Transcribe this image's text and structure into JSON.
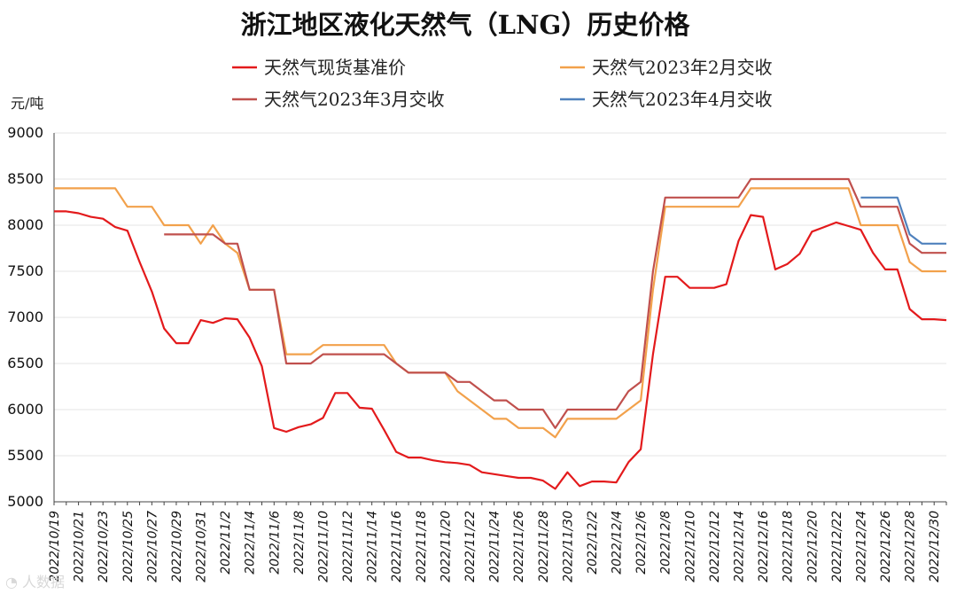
{
  "chart_data": {
    "type": "line",
    "title": "浙江地区液化天然气（LNG）历史价格",
    "ylabel": "元/吨",
    "ylim": [
      5000,
      9000
    ],
    "yticks": [
      5000,
      5500,
      6000,
      6500,
      7000,
      7500,
      8000,
      8500,
      9000
    ],
    "grid": true,
    "legend_position": "top",
    "x_labels": [
      "2022/10/19",
      "2022/10/21",
      "2022/10/23",
      "2022/10/25",
      "2022/10/27",
      "2022/10/29",
      "2022/10/31",
      "2022/11/2",
      "2022/11/4",
      "2022/11/6",
      "2022/11/8",
      "2022/11/10",
      "2022/11/12",
      "2022/11/14",
      "2022/11/16",
      "2022/11/18",
      "2022/11/20",
      "2022/11/22",
      "2022/11/24",
      "2022/11/26",
      "2022/11/28",
      "2022/11/30",
      "2022/12/2",
      "2022/12/4",
      "2022/12/6",
      "2022/12/8",
      "2022/12/10",
      "2022/12/12",
      "2022/12/14",
      "2022/12/16",
      "2022/12/18",
      "2022/12/20",
      "2022/12/22",
      "2022/12/24",
      "2022/12/26",
      "2022/12/28",
      "2022/12/30"
    ],
    "x_start": "2022/10/19",
    "x_end": "2022/12/31",
    "series": [
      {
        "name": "天然气现货基准价",
        "color": "#e31a1c",
        "points": [
          [
            "2022/10/19",
            8150
          ],
          [
            "2022/10/20",
            8150
          ],
          [
            "2022/10/21",
            8130
          ],
          [
            "2022/10/22",
            8090
          ],
          [
            "2022/10/23",
            8070
          ],
          [
            "2022/10/24",
            7980
          ],
          [
            "2022/10/25",
            7940
          ],
          [
            "2022/10/26",
            7600
          ],
          [
            "2022/10/27",
            7280
          ],
          [
            "2022/10/28",
            6880
          ],
          [
            "2022/10/29",
            6720
          ],
          [
            "2022/10/30",
            6720
          ],
          [
            "2022/10/31",
            6970
          ],
          [
            "2022/11/1",
            6940
          ],
          [
            "2022/11/2",
            6990
          ],
          [
            "2022/11/3",
            6980
          ],
          [
            "2022/11/4",
            6780
          ],
          [
            "2022/11/5",
            6470
          ],
          [
            "2022/11/6",
            5800
          ],
          [
            "2022/11/7",
            5760
          ],
          [
            "2022/11/8",
            5810
          ],
          [
            "2022/11/9",
            5840
          ],
          [
            "2022/11/10",
            5910
          ],
          [
            "2022/11/11",
            6180
          ],
          [
            "2022/11/12",
            6180
          ],
          [
            "2022/11/13",
            6020
          ],
          [
            "2022/11/14",
            6010
          ],
          [
            "2022/11/15",
            5780
          ],
          [
            "2022/11/16",
            5540
          ],
          [
            "2022/11/17",
            5480
          ],
          [
            "2022/11/18",
            5480
          ],
          [
            "2022/11/19",
            5450
          ],
          [
            "2022/11/20",
            5430
          ],
          [
            "2022/11/21",
            5420
          ],
          [
            "2022/11/22",
            5400
          ],
          [
            "2022/11/23",
            5320
          ],
          [
            "2022/11/24",
            5300
          ],
          [
            "2022/11/25",
            5280
          ],
          [
            "2022/11/26",
            5260
          ],
          [
            "2022/11/27",
            5260
          ],
          [
            "2022/11/28",
            5230
          ],
          [
            "2022/11/29",
            5140
          ],
          [
            "2022/11/30",
            5320
          ],
          [
            "2022/12/1",
            5170
          ],
          [
            "2022/12/2",
            5220
          ],
          [
            "2022/12/3",
            5220
          ],
          [
            "2022/12/4",
            5210
          ],
          [
            "2022/12/5",
            5430
          ],
          [
            "2022/12/6",
            5570
          ],
          [
            "2022/12/7",
            6600
          ],
          [
            "2022/12/8",
            7440
          ],
          [
            "2022/12/9",
            7440
          ],
          [
            "2022/12/10",
            7320
          ],
          [
            "2022/12/11",
            7320
          ],
          [
            "2022/12/12",
            7320
          ],
          [
            "2022/12/13",
            7360
          ],
          [
            "2022/12/14",
            7830
          ],
          [
            "2022/12/15",
            8110
          ],
          [
            "2022/12/16",
            8090
          ],
          [
            "2022/12/17",
            7520
          ],
          [
            "2022/12/18",
            7580
          ],
          [
            "2022/12/19",
            7690
          ],
          [
            "2022/12/20",
            7930
          ],
          [
            "2022/12/21",
            7980
          ],
          [
            "2022/12/22",
            8030
          ],
          [
            "2022/12/23",
            7990
          ],
          [
            "2022/12/24",
            7950
          ],
          [
            "2022/12/25",
            7700
          ],
          [
            "2022/12/26",
            7520
          ],
          [
            "2022/12/27",
            7520
          ],
          [
            "2022/12/28",
            7090
          ],
          [
            "2022/12/29",
            6980
          ],
          [
            "2022/12/30",
            6980
          ],
          [
            "2022/12/31",
            6970
          ]
        ]
      },
      {
        "name": "天然气2023年2月交收",
        "color": "#f2a14b",
        "points": [
          [
            "2022/10/19",
            8400
          ],
          [
            "2022/10/24",
            8400
          ],
          [
            "2022/10/25",
            8200
          ],
          [
            "2022/10/27",
            8200
          ],
          [
            "2022/10/28",
            8000
          ],
          [
            "2022/10/30",
            8000
          ],
          [
            "2022/10/31",
            7800
          ],
          [
            "2022/11/1",
            8000
          ],
          [
            "2022/11/2",
            7800
          ],
          [
            "2022/11/3",
            7700
          ],
          [
            "2022/11/4",
            7300
          ],
          [
            "2022/11/6",
            7300
          ],
          [
            "2022/11/7",
            6600
          ],
          [
            "2022/11/9",
            6600
          ],
          [
            "2022/11/10",
            6700
          ],
          [
            "2022/11/15",
            6700
          ],
          [
            "2022/11/16",
            6500
          ],
          [
            "2022/11/17",
            6400
          ],
          [
            "2022/11/20",
            6400
          ],
          [
            "2022/11/21",
            6200
          ],
          [
            "2022/11/22",
            6100
          ],
          [
            "2022/11/23",
            6000
          ],
          [
            "2022/11/24",
            5900
          ],
          [
            "2022/11/25",
            5900
          ],
          [
            "2022/11/26",
            5800
          ],
          [
            "2022/11/28",
            5800
          ],
          [
            "2022/11/29",
            5700
          ],
          [
            "2022/11/30",
            5900
          ],
          [
            "2022/12/4",
            5900
          ],
          [
            "2022/12/6",
            6100
          ],
          [
            "2022/12/7",
            7300
          ],
          [
            "2022/12/8",
            8200
          ],
          [
            "2022/12/14",
            8200
          ],
          [
            "2022/12/15",
            8400
          ],
          [
            "2022/12/23",
            8400
          ],
          [
            "2022/12/24",
            8000
          ],
          [
            "2022/12/27",
            8000
          ],
          [
            "2022/12/28",
            7600
          ],
          [
            "2022/12/29",
            7500
          ],
          [
            "2022/12/31",
            7500
          ]
        ]
      },
      {
        "name": "天然气2023年3月交收",
        "color": "#c0504d",
        "points": [
          [
            "2022/10/28",
            7900
          ],
          [
            "2022/10/31",
            7900
          ],
          [
            "2022/11/1",
            7900
          ],
          [
            "2022/11/2",
            7800
          ],
          [
            "2022/11/3",
            7800
          ],
          [
            "2022/11/4",
            7300
          ],
          [
            "2022/11/6",
            7300
          ],
          [
            "2022/11/7",
            6500
          ],
          [
            "2022/11/9",
            6500
          ],
          [
            "2022/11/10",
            6600
          ],
          [
            "2022/11/15",
            6600
          ],
          [
            "2022/11/16",
            6500
          ],
          [
            "2022/11/17",
            6400
          ],
          [
            "2022/11/20",
            6400
          ],
          [
            "2022/11/21",
            6300
          ],
          [
            "2022/11/22",
            6300
          ],
          [
            "2022/11/23",
            6200
          ],
          [
            "2022/11/24",
            6100
          ],
          [
            "2022/11/25",
            6100
          ],
          [
            "2022/11/26",
            6000
          ],
          [
            "2022/11/28",
            6000
          ],
          [
            "2022/11/29",
            5800
          ],
          [
            "2022/11/30",
            6000
          ],
          [
            "2022/12/4",
            6000
          ],
          [
            "2022/12/5",
            6200
          ],
          [
            "2022/12/6",
            6300
          ],
          [
            "2022/12/7",
            7500
          ],
          [
            "2022/12/8",
            8300
          ],
          [
            "2022/12/14",
            8300
          ],
          [
            "2022/12/15",
            8500
          ],
          [
            "2022/12/23",
            8500
          ],
          [
            "2022/12/24",
            8200
          ],
          [
            "2022/12/27",
            8200
          ],
          [
            "2022/12/28",
            7800
          ],
          [
            "2022/12/29",
            7700
          ],
          [
            "2022/12/31",
            7700
          ]
        ]
      },
      {
        "name": "天然气2023年4月交收",
        "color": "#4f81bd",
        "points": [
          [
            "2022/12/24",
            8300
          ],
          [
            "2022/12/27",
            8300
          ],
          [
            "2022/12/28",
            7900
          ],
          [
            "2022/12/29",
            7800
          ],
          [
            "2022/12/31",
            7800
          ]
        ]
      }
    ]
  }
}
